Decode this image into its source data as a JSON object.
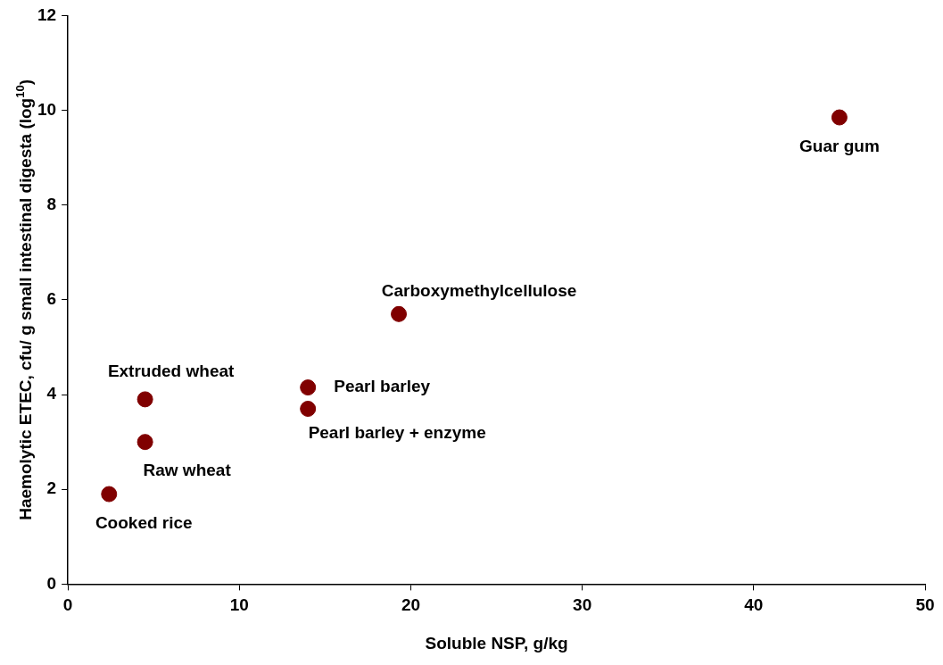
{
  "chart_data": {
    "type": "scatter",
    "xlabel": "Soluble NSP, g/kg",
    "ylabel": "Haemolytic ETEC, cfu/ g small intestinal digesta (log$^{10}$)",
    "x": [
      45,
      19.3,
      14,
      14,
      4.5,
      4.5,
      2.4
    ],
    "series": [
      {
        "color": "#800000",
        "values": [
          9.85,
          5.7,
          4.15,
          3.7,
          3.9,
          3,
          1.9
        ]
      }
    ],
    "xlim": [
      0,
      50
    ],
    "xticks": [
      0,
      10,
      20,
      30,
      40,
      50
    ],
    "ylim": [
      0,
      12
    ],
    "yticks": [
      0,
      2,
      4,
      6,
      8,
      10,
      12
    ],
    "grid": false,
    "legend": false,
    "marker": "circle",
    "annotations": [
      {
        "text": "Guar gum",
        "x": 45,
        "y": 9.85
      },
      {
        "text": "Carboxymethylcellulose",
        "x": 19.3,
        "y": 5.7
      },
      {
        "text": "Pearl barley",
        "x": 14,
        "y": 4.15
      },
      {
        "text": "Pearl barley + enzyme",
        "x": 14,
        "y": 3.7
      },
      {
        "text": "Extruded wheat",
        "x": 4.5,
        "y": 3.9
      },
      {
        "text": "Raw wheat",
        "x": 4.5,
        "y": 3
      },
      {
        "text": "Cooked rice",
        "x": 2.4,
        "y": 1.9
      }
    ]
  }
}
